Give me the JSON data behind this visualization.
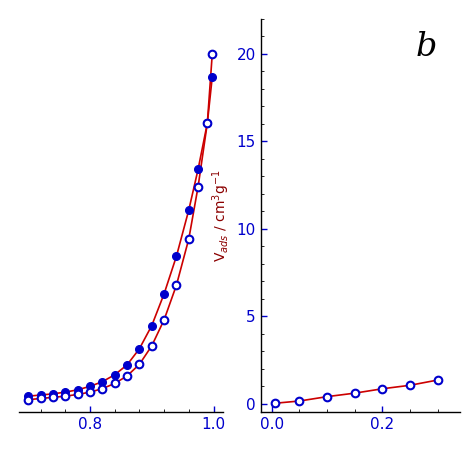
{
  "panel_a": {
    "filled_x": [
      0.7,
      0.72,
      0.74,
      0.76,
      0.78,
      0.8,
      0.82,
      0.84,
      0.86,
      0.88,
      0.9,
      0.92,
      0.94,
      0.96,
      0.975,
      0.99,
      0.998
    ],
    "filled_y": [
      2.8,
      3.0,
      3.2,
      3.5,
      3.9,
      4.5,
      5.3,
      6.5,
      8.2,
      11.0,
      15.0,
      20.5,
      27.0,
      35.0,
      42.0,
      50.0,
      58.0
    ],
    "open_x": [
      0.7,
      0.72,
      0.74,
      0.76,
      0.78,
      0.8,
      0.82,
      0.84,
      0.86,
      0.88,
      0.9,
      0.92,
      0.94,
      0.96,
      0.975,
      0.99,
      0.998
    ],
    "open_y": [
      2.2,
      2.4,
      2.6,
      2.8,
      3.1,
      3.5,
      4.1,
      5.0,
      6.3,
      8.3,
      11.5,
      16.0,
      22.0,
      30.0,
      39.0,
      50.0,
      62.0
    ],
    "xlim": [
      0.685,
      1.015
    ],
    "xticks": [
      0.8,
      1.0
    ],
    "ylim": [
      0,
      68
    ]
  },
  "panel_b": {
    "open_x": [
      0.005,
      0.05,
      0.1,
      0.15,
      0.2,
      0.25,
      0.3
    ],
    "open_y": [
      0.02,
      0.15,
      0.4,
      0.6,
      0.85,
      1.05,
      1.35
    ],
    "xlim": [
      -0.02,
      0.34
    ],
    "xticks": [
      0.0,
      0.2
    ],
    "ylim": [
      -0.5,
      22
    ],
    "yticks": [
      0,
      5,
      10,
      15,
      20
    ]
  },
  "line_color": "#cc0000",
  "filled_color": "#0000cc",
  "open_color": "#0000cc",
  "ylabel": "V$_{ads}$ / cm$^{3}$g$^{-1}$",
  "ylabel_color": "#8b0000",
  "tick_color": "#0000cc",
  "panel_b_label": "b",
  "bg_color": "#ffffff"
}
